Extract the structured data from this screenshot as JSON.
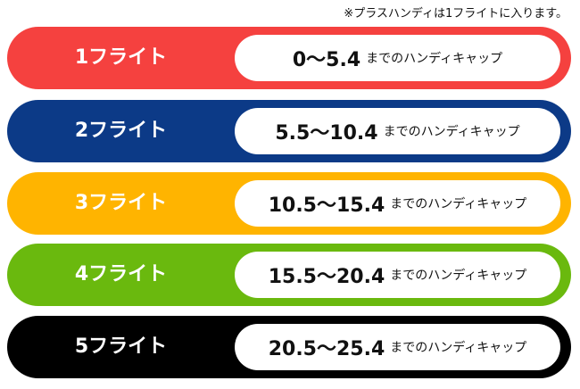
{
  "note": "※プラスハンディは1フライトに入ります。",
  "suffix": "までのハンディキャップ",
  "flights": [
    {
      "label": "1フライト",
      "range": "0〜5.4",
      "color": "#f5413f"
    },
    {
      "label": "2フライト",
      "range": "5.5〜10.4",
      "color": "#0c3a87"
    },
    {
      "label": "3フライト",
      "range": "10.5〜15.4",
      "color": "#ffb400"
    },
    {
      "label": "4フライト",
      "range": "15.5〜20.4",
      "color": "#6ab90e"
    },
    {
      "label": "5フライト",
      "range": "20.5〜25.4",
      "color": "#000000"
    }
  ]
}
